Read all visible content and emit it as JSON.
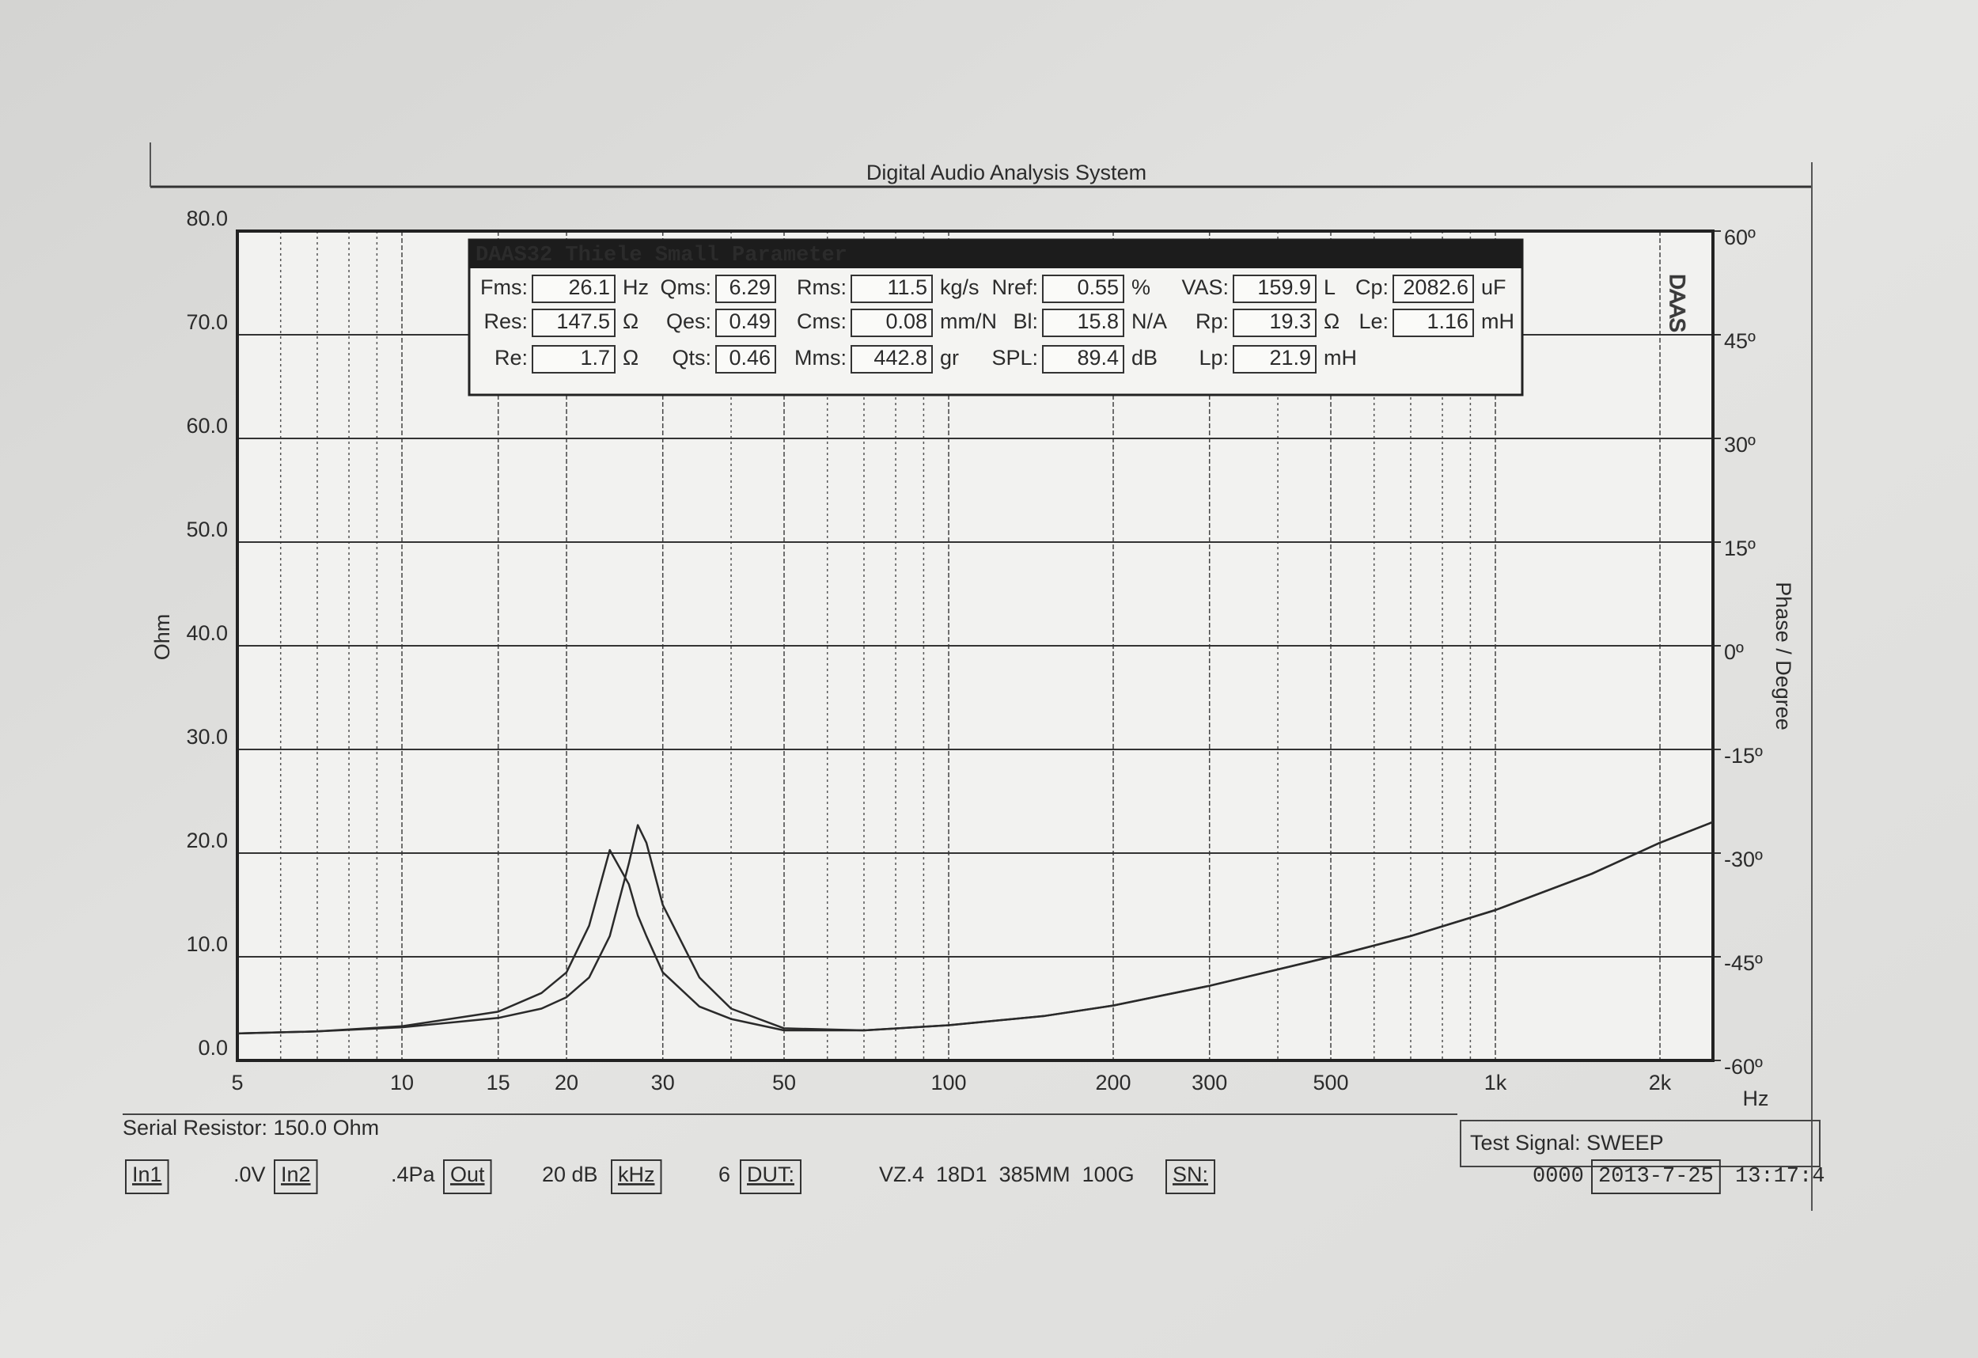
{
  "chart_data": {
    "type": "line",
    "title": "Digital Audio Analysis System",
    "ylabel": "Ohm",
    "y2label": "Phase / Degree",
    "xunit": "Hz",
    "log_x": true,
    "grid": true,
    "xlim": [
      5,
      2500
    ],
    "xticks": [
      5,
      10,
      15,
      20,
      30,
      50,
      100,
      200,
      300,
      500,
      {
        "value": 1000,
        "label": "1k"
      },
      {
        "value": 2000,
        "label": "2k"
      }
    ],
    "ylim": [
      0,
      80
    ],
    "yticks": [
      {
        "value": 0,
        "label": "0.0"
      },
      {
        "value": 10,
        "label": "10.0"
      },
      {
        "value": 20,
        "label": "20.0"
      },
      {
        "value": 30,
        "label": "30.0"
      },
      {
        "value": 40,
        "label": "40.0"
      },
      {
        "value": 50,
        "label": "50.0"
      },
      {
        "value": 60,
        "label": "60.0"
      },
      {
        "value": 70,
        "label": "70.0"
      },
      {
        "value": 80,
        "label": "80.0"
      }
    ],
    "y2lim": [
      -60,
      60
    ],
    "y2ticks": [
      {
        "value": -60,
        "label": "-60º"
      },
      {
        "value": -45,
        "label": "-45º"
      },
      {
        "value": -30,
        "label": "-30º"
      },
      {
        "value": -15,
        "label": "-15º"
      },
      {
        "value": 0,
        "label": "0º"
      },
      {
        "value": 15,
        "label": "15º"
      },
      {
        "value": 30,
        "label": "30º"
      },
      {
        "value": 45,
        "label": "45º"
      },
      {
        "value": 60,
        "label": "60º"
      }
    ],
    "x": [
      5,
      7,
      10,
      15,
      18,
      20,
      22,
      24,
      26,
      27,
      28,
      30,
      35,
      40,
      50,
      70,
      100,
      150,
      200,
      300,
      500,
      700,
      1000,
      1500,
      2000,
      2500
    ],
    "series": [
      {
        "color": "#2a2a2a",
        "values": [
          2.6,
          2.8,
          3.3,
          4.7,
          6.5,
          8.5,
          13,
          20.3,
          17,
          14,
          12,
          8.5,
          5.2,
          4,
          2.9,
          2.9,
          3.4,
          4.3,
          5.3,
          7.2,
          10,
          12,
          14.5,
          18,
          21,
          23
        ]
      },
      {
        "color": "#2a2a2a",
        "values": [
          2.6,
          2.8,
          3.2,
          4.1,
          5,
          6.1,
          8,
          12,
          19,
          22.7,
          21,
          15,
          8,
          5,
          3.1,
          2.9,
          3.4,
          4.3,
          5.3,
          7.2,
          10,
          12,
          14.5,
          18,
          21,
          23
        ]
      }
    ]
  },
  "logo": "DAAS",
  "parameters": {
    "title": "DAAS32 Thiele Small Parameter",
    "rows": [
      [
        {
          "label": "Fms:",
          "value": "26.1",
          "unit": "Hz"
        },
        {
          "label": "Qms:",
          "value": "6.29"
        },
        {
          "label": "Rms:",
          "value": "11.5",
          "unit": "kg/s"
        },
        {
          "label": "Nref:",
          "value": "0.55",
          "unit": "%"
        },
        {
          "label": "VAS:",
          "value": "159.9",
          "unit": "L"
        },
        {
          "label": "Cp:",
          "value": "2082.6",
          "unit": "uF"
        }
      ],
      [
        {
          "label": "Res:",
          "value": "147.5",
          "unit": "Ω"
        },
        {
          "label": "Qes:",
          "value": "0.49"
        },
        {
          "label": "Cms:",
          "value": "0.08",
          "unit": "mm/N"
        },
        {
          "label": "Bl:",
          "value": "15.8",
          "unit": "N/A"
        },
        {
          "label": "Rp:",
          "value": "19.3",
          "unit": "Ω"
        },
        {
          "label": "Le:",
          "value": "1.16",
          "unit": "mH"
        }
      ],
      [
        {
          "label": "Re:",
          "value": "1.7",
          "unit": "Ω"
        },
        {
          "label": "Qts:",
          "value": "0.46"
        },
        {
          "label": "Mms:",
          "value": "442.8",
          "unit": "gr"
        },
        {
          "label": "SPL:",
          "value": "89.4",
          "unit": "dB"
        },
        {
          "label": "Lp:",
          "value": "21.9",
          "unit": "mH"
        }
      ]
    ]
  },
  "footer": {
    "serial_resistor": "Serial Resistor: 150.0 Ohm",
    "test_signal": "Test Signal: SWEEP",
    "status": [
      "In1",
      ".0V",
      "In2",
      ".4Pa",
      "Out",
      "20 dB",
      "kHz",
      "6",
      "DUT:",
      "VZ.4  18D1  385MM  100G",
      "SN:",
      "0000",
      "2013-7-25",
      "13:17:4"
    ]
  }
}
